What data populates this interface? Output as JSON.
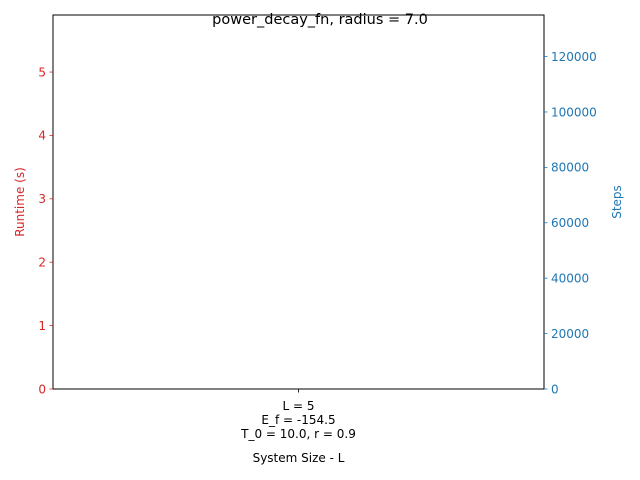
{
  "chart_data": {
    "type": "bar",
    "title": "power_decay_fn, radius = 7.0",
    "xlabel": "System Size - L",
    "categories": [
      [
        "L = 5",
        "E_f = -154.5",
        "T_0 = 10.0, r = 0.9"
      ]
    ],
    "y_left": {
      "label": "Runtime (s)",
      "color": "#d62728",
      "ylim": [
        0,
        5.9
      ],
      "ticks": [
        0,
        1,
        2,
        3,
        4,
        5
      ],
      "tick_labels": [
        "0",
        "1",
        "2",
        "3",
        "4",
        "5"
      ]
    },
    "y_right": {
      "label": "Steps",
      "color": "#1f77b4",
      "ylim": [
        0,
        135000
      ],
      "ticks": [
        0,
        20000,
        40000,
        60000,
        80000,
        100000,
        120000
      ],
      "tick_labels": [
        "0",
        "20000",
        "40000",
        "60000",
        "80000",
        "100000",
        "120000"
      ]
    },
    "series": [],
    "grid": false,
    "legend": "none"
  }
}
